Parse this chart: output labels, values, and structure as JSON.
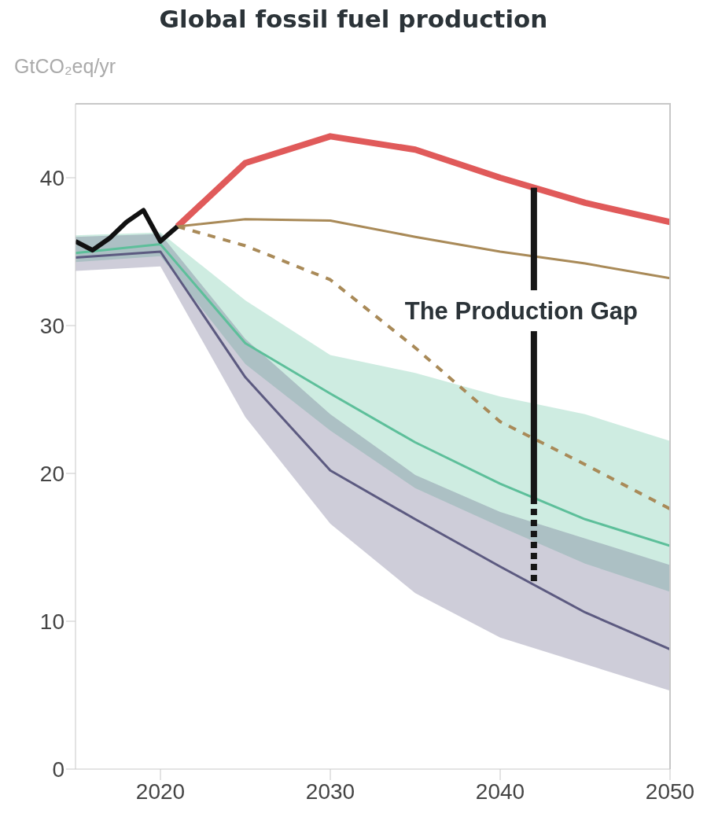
{
  "chart_data": {
    "type": "line",
    "title": "Global fossil fuel production",
    "ylabel": "GtCO₂eq/yr",
    "xlim": [
      2015,
      2050
    ],
    "xticks": [
      2020,
      2030,
      2040,
      2050
    ],
    "ylim": [
      0,
      45
    ],
    "yticks": [
      0,
      10,
      20,
      30,
      40
    ],
    "marker": "none",
    "series": [
      {
        "color": "#111111",
        "x": [
          2015,
          2016,
          2017,
          2018,
          2019,
          2020,
          2021
        ],
        "values": [
          35.7,
          35.1,
          35.9,
          37.0,
          37.8,
          35.7,
          36.7
        ]
      },
      {
        "color": "#e05a5a",
        "x": [
          2021,
          2025,
          2030,
          2035,
          2040,
          2045,
          2050
        ],
        "values": [
          36.7,
          41.0,
          42.8,
          41.9,
          40.0,
          38.3,
          37.0
        ]
      },
      {
        "color": "#a98a58",
        "x": [
          2021,
          2025,
          2030,
          2035,
          2040,
          2045,
          2050
        ],
        "values": [
          36.7,
          37.2,
          37.1,
          36.0,
          35.0,
          34.2,
          33.2
        ]
      },
      {
        "color": "#a98a58",
        "line_style": "dashed",
        "x": [
          2021,
          2025,
          2030,
          2035,
          2040,
          2045,
          2050
        ],
        "values": [
          36.7,
          35.4,
          33.1,
          28.5,
          23.5,
          20.6,
          17.6
        ]
      },
      {
        "color": "#5dbf9a",
        "x": [
          2015,
          2020,
          2025,
          2030,
          2035,
          2040,
          2045,
          2050
        ],
        "values": [
          34.9,
          35.5,
          28.8,
          25.4,
          22.1,
          19.3,
          16.9,
          15.1
        ],
        "lower": [
          34.3,
          34.7,
          27.4,
          22.9,
          19.0,
          16.4,
          13.9,
          12.0
        ],
        "upper": [
          36.1,
          36.3,
          31.7,
          28.0,
          26.8,
          25.2,
          24.0,
          22.2
        ]
      },
      {
        "color": "#5c5a80",
        "x": [
          2015,
          2020,
          2025,
          2030,
          2035,
          2040,
          2045,
          2050
        ],
        "values": [
          34.6,
          35.0,
          26.5,
          20.2,
          16.9,
          13.7,
          10.6,
          8.1
        ],
        "lower": [
          33.7,
          34.0,
          23.8,
          16.6,
          11.9,
          8.9,
          7.1,
          5.3
        ],
        "upper": [
          36.0,
          36.2,
          29.1,
          24.0,
          19.9,
          17.4,
          15.6,
          13.8
        ]
      }
    ],
    "annotations": [
      "The Production Gap"
    ]
  }
}
